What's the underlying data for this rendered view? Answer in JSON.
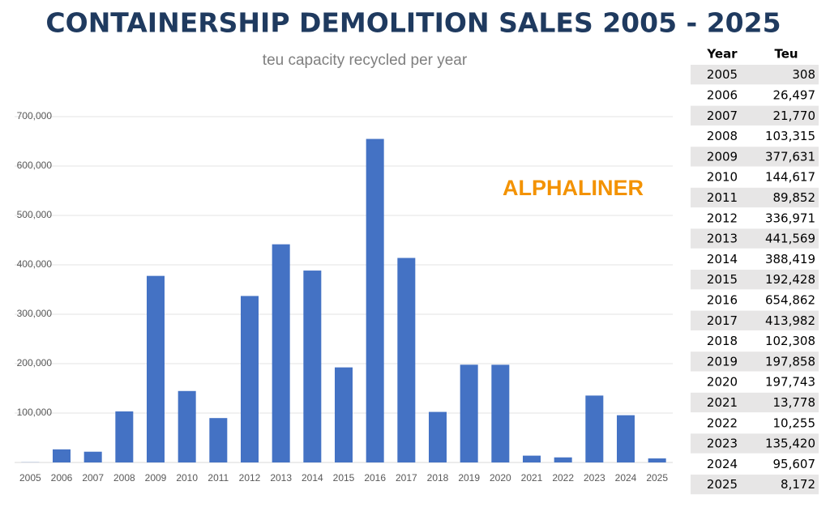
{
  "chart_data": {
    "type": "bar",
    "title": "CONTAINERSHIP DEMOLITION SALES 2005 - 2025",
    "subtitle": "teu capacity recycled per year",
    "annotation": "ALPHALINER",
    "categories": [
      "2005",
      "2006",
      "2007",
      "2008",
      "2009",
      "2010",
      "2011",
      "2012",
      "2013",
      "2014",
      "2015",
      "2016",
      "2017",
      "2018",
      "2019",
      "2020",
      "2021",
      "2022",
      "2023",
      "2024",
      "2025"
    ],
    "values": [
      308,
      26497,
      21770,
      103315,
      377631,
      144617,
      89852,
      336971,
      441569,
      388419,
      192428,
      654862,
      413982,
      102308,
      197858,
      197743,
      13778,
      10255,
      135420,
      95607,
      8172
    ],
    "value_labels": [
      "308",
      "26,497",
      "21,770",
      "103,315",
      "377,631",
      "144,617",
      "89,852",
      "336,971",
      "441,569",
      "388,419",
      "192,428",
      "654,862",
      "413,982",
      "102,308",
      "197,858",
      "197,743",
      "13,778",
      "10,255",
      "135,420",
      "95,607",
      "8,172"
    ],
    "color": "#4472c4",
    "ylim": [
      0,
      700000
    ],
    "yticks": [
      {
        "value": 100000,
        "label": "100,000"
      },
      {
        "value": 200000,
        "label": "200,000"
      },
      {
        "value": 300000,
        "label": "300,000"
      },
      {
        "value": 400000,
        "label": "400,000"
      },
      {
        "value": 500000,
        "label": "500,000"
      },
      {
        "value": 600000,
        "label": "600,000"
      },
      {
        "value": 700000,
        "label": "700,000"
      }
    ],
    "grid": true
  },
  "table": {
    "header": [
      "Year",
      "Teu"
    ]
  }
}
